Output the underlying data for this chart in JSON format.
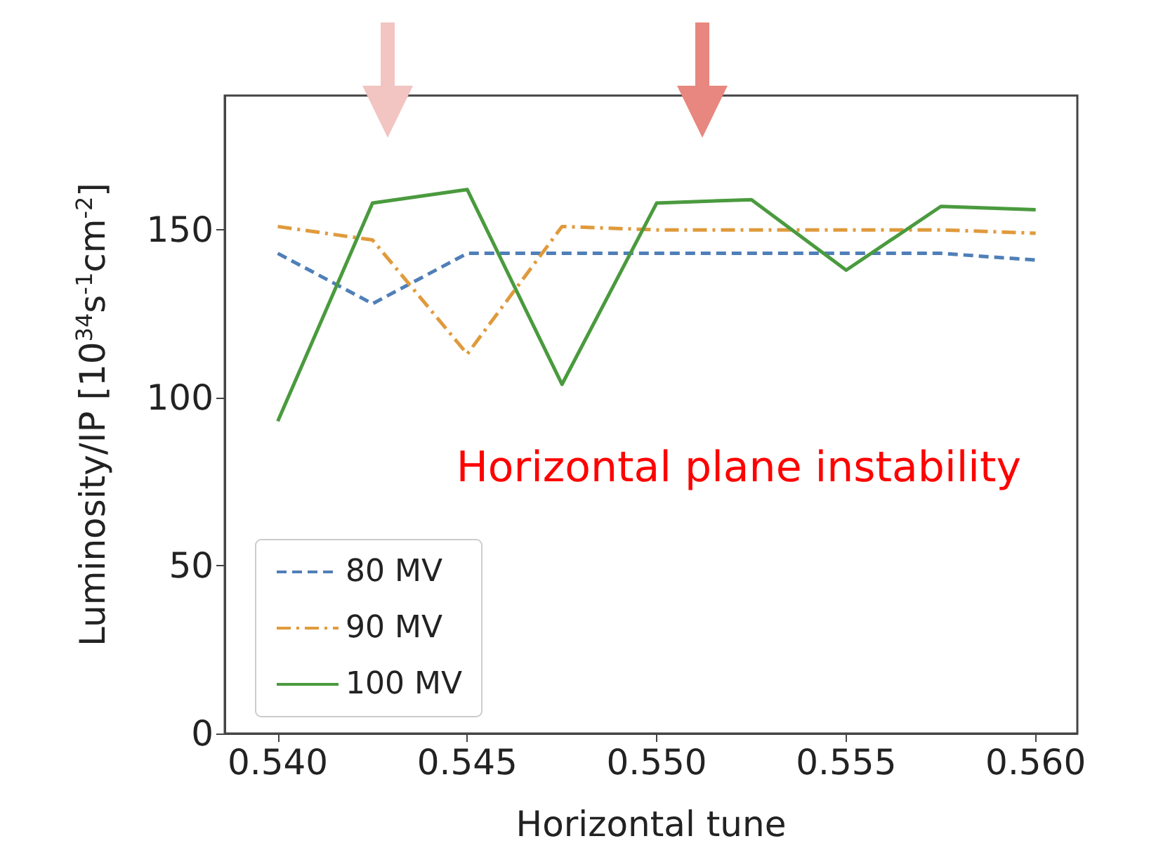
{
  "chart_data": {
    "type": "line",
    "xlabel": "Horizontal tune",
    "ylabel": "Luminosity/IP [10$^{34}$s$^{-1}$cm$^{-2}$]",
    "annotations": [
      "Horizontal plane instability"
    ],
    "x": [
      0.54,
      0.5425,
      0.545,
      0.5475,
      0.55,
      0.5525,
      0.555,
      0.5575,
      0.56
    ],
    "series": [
      {
        "name": "80 MV",
        "color": "#4f7fb8",
        "line_style": "dashed",
        "values": [
          143,
          128,
          143,
          143,
          143,
          143,
          143,
          143,
          141
        ]
      },
      {
        "name": "90 MV",
        "color": "#e09a3c",
        "line_style": "dashdot",
        "values": [
          151,
          147,
          113,
          151,
          150,
          150,
          150,
          150,
          149
        ]
      },
      {
        "name": "100 MV",
        "color": "#4a9a3e",
        "line_style": "solid",
        "values": [
          93,
          158,
          162,
          104,
          158,
          159,
          138,
          157,
          156
        ]
      }
    ],
    "xlim": [
      0.5386,
      0.5611
    ],
    "xticks": [
      {
        "value": 0.54,
        "label": "0.540"
      },
      {
        "value": 0.545,
        "label": "0.545"
      },
      {
        "value": 0.55,
        "label": "0.550"
      },
      {
        "value": 0.555,
        "label": "0.555"
      },
      {
        "value": 0.56,
        "label": "0.560"
      }
    ],
    "ylim": [
      0,
      190
    ],
    "yticks": [
      0,
      50,
      100,
      150
    ],
    "grid": false,
    "legend": "bottom left",
    "marker": "none"
  }
}
